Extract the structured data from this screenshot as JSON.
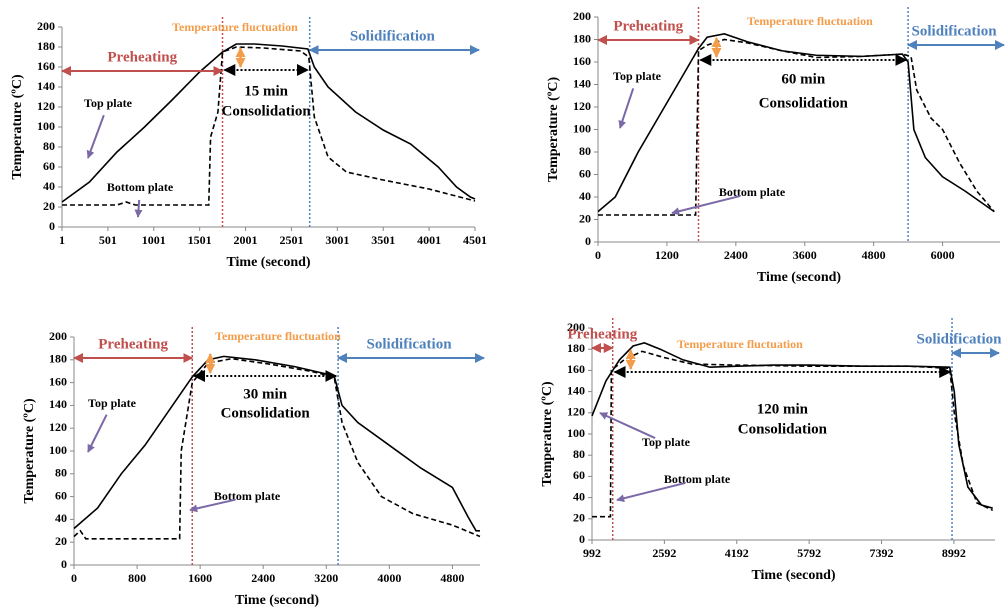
{
  "chart_data": [
    {
      "type": "line",
      "xlabel": "Time (second)",
      "ylabel": "Temperature (ºC)",
      "xlim": [
        1,
        4501
      ],
      "xticks": [
        1,
        501,
        1001,
        1501,
        2001,
        2501,
        3001,
        3501,
        4001,
        4501
      ],
      "ylim": [
        0,
        200
      ],
      "yticks": [
        0,
        20,
        40,
        60,
        80,
        100,
        120,
        140,
        160,
        180,
        200
      ],
      "vlines": [
        {
          "value": 1750,
          "color": "#c0504d"
        },
        {
          "value": 2700,
          "color": "#4f81bd"
        }
      ],
      "annotations": {
        "preheating": "Preheating",
        "fluctuation": "Temperature fluctuation",
        "solidification": "Solidification",
        "duration": "15 min",
        "consolidation": "Consolidation"
      },
      "series": [
        {
          "name": "Top plate",
          "color": "#000000",
          "line_style": "solid",
          "x": [
            1,
            300,
            600,
            900,
            1200,
            1500,
            1750,
            1900,
            2100,
            2400,
            2680,
            2750,
            2900,
            3200,
            3500,
            3800,
            4100,
            4300,
            4450,
            4501
          ],
          "values": [
            25,
            45,
            75,
            100,
            127,
            155,
            175,
            183,
            183,
            181,
            178,
            160,
            140,
            115,
            97,
            83,
            60,
            40,
            30,
            28
          ]
        },
        {
          "name": "Bottom plate",
          "color": "#000000",
          "line_style": "dashed",
          "x": [
            1,
            600,
            700,
            800,
            1600,
            1620,
            1700,
            1750,
            1900,
            2200,
            2600,
            2690,
            2750,
            2900,
            3100,
            3500,
            4000,
            4501
          ],
          "values": [
            22,
            22,
            25,
            22,
            22,
            90,
            115,
            175,
            180,
            179,
            176,
            170,
            110,
            70,
            55,
            47,
            38,
            26
          ]
        }
      ]
    },
    {
      "type": "line",
      "xlabel": "Time (second)",
      "ylabel": "Temperature (ºC)",
      "xlim": [
        0,
        7000
      ],
      "xticks": [
        0,
        1200,
        2400,
        3600,
        4800,
        6000
      ],
      "ylim": [
        0,
        200
      ],
      "yticks": [
        0,
        20,
        40,
        60,
        80,
        100,
        120,
        140,
        160,
        180,
        200
      ],
      "vlines": [
        {
          "value": 1750,
          "color": "#c0504d"
        },
        {
          "value": 5400,
          "color": "#4f81bd"
        }
      ],
      "annotations": {
        "preheating": "Preheating",
        "fluctuation": "Temperature fluctuation",
        "solidification": "Solidification",
        "duration": "60 min",
        "consolidation": "Consolidation"
      },
      "series": [
        {
          "name": "Top plate",
          "color": "#000000",
          "line_style": "solid",
          "x": [
            0,
            300,
            700,
            1100,
            1500,
            1750,
            1900,
            2200,
            2600,
            3200,
            3800,
            4600,
            5300,
            5400,
            5500,
            5700,
            6000,
            6400,
            6900
          ],
          "values": [
            27,
            40,
            80,
            115,
            150,
            172,
            182,
            185,
            178,
            170,
            166,
            165,
            167,
            160,
            100,
            75,
            58,
            45,
            27
          ]
        },
        {
          "name": "Bottom plate",
          "color": "#000000",
          "line_style": "dashed",
          "x": [
            0,
            1700,
            1750,
            1900,
            2200,
            2600,
            3200,
            3800,
            4600,
            5300,
            5450,
            5550,
            5800,
            6000,
            6300,
            6600,
            6900
          ],
          "values": [
            24,
            24,
            170,
            175,
            180,
            177,
            170,
            164,
            165,
            167,
            165,
            135,
            110,
            100,
            70,
            45,
            27
          ]
        }
      ]
    },
    {
      "type": "line",
      "xlabel": "Time (second)",
      "ylabel": "Temperature (ºC)",
      "xlim": [
        0,
        5150
      ],
      "xticks": [
        0,
        800,
        1600,
        2400,
        3200,
        4000,
        4800
      ],
      "ylim": [
        0,
        200
      ],
      "yticks": [
        0,
        20,
        40,
        60,
        80,
        100,
        120,
        140,
        160,
        180,
        200
      ],
      "vlines": [
        {
          "value": 1500,
          "color": "#c0504d"
        },
        {
          "value": 3350,
          "color": "#4f81bd"
        }
      ],
      "annotations": {
        "preheating": "Preheating",
        "fluctuation": "Temperature fluctuation",
        "solidification": "Solidification",
        "duration": "30 min",
        "consolidation": "Consolidation"
      },
      "series": [
        {
          "name": "Top plate",
          "color": "#000000",
          "line_style": "solid",
          "x": [
            0,
            300,
            600,
            900,
            1200,
            1500,
            1700,
            1900,
            2300,
            2800,
            3300,
            3400,
            3600,
            4000,
            4400,
            4800,
            5000,
            5100,
            5150
          ],
          "values": [
            32,
            50,
            80,
            105,
            135,
            165,
            180,
            183,
            180,
            174,
            166,
            140,
            125,
            105,
            85,
            68,
            42,
            30,
            30
          ]
        },
        {
          "name": "Bottom plate",
          "color": "#000000",
          "line_style": "dashed",
          "x": [
            0,
            80,
            150,
            1340,
            1360,
            1500,
            1700,
            2000,
            2500,
            3000,
            3300,
            3400,
            3600,
            3900,
            4300,
            4800,
            5150
          ],
          "values": [
            25,
            30,
            23,
            23,
            100,
            160,
            177,
            181,
            176,
            170,
            165,
            125,
            90,
            60,
            45,
            35,
            25
          ]
        }
      ]
    },
    {
      "type": "line",
      "xlabel": "Time (second)",
      "ylabel": "Temperature (ºC)",
      "xlim": [
        992,
        9900
      ],
      "xticks": [
        992,
        2592,
        4192,
        5792,
        7392,
        8992
      ],
      "ylim": [
        0,
        200
      ],
      "yticks": [
        0,
        20,
        40,
        60,
        80,
        100,
        120,
        140,
        160,
        180,
        200
      ],
      "vlines": [
        {
          "value": 1450,
          "color": "#c0504d"
        },
        {
          "value": 8950,
          "color": "#4f81bd"
        }
      ],
      "annotations": {
        "preheating": "Preheating",
        "fluctuation": "Temperature fluctuation",
        "solidification": "Solidification",
        "duration": "120 min",
        "consolidation": "Consolidation"
      },
      "series": [
        {
          "name": "Top plate",
          "color": "#000000",
          "line_style": "solid",
          "x": [
            992,
            1300,
            1600,
            1900,
            2150,
            2500,
            3000,
            3600,
            4192,
            5000,
            5792,
            7000,
            8000,
            8900,
            9000,
            9100,
            9300,
            9600,
            9850
          ],
          "values": [
            117,
            150,
            170,
            183,
            186,
            180,
            170,
            163,
            164,
            165,
            165,
            164,
            164,
            163,
            140,
            90,
            50,
            33,
            30
          ]
        },
        {
          "name": "Bottom plate",
          "color": "#000000",
          "line_style": "dashed",
          "x": [
            992,
            1400,
            1420,
            1700,
            2100,
            2600,
            3200,
            4192,
            5792,
            8000,
            8900,
            9000,
            9200,
            9500,
            9850
          ],
          "values": [
            22,
            22,
            160,
            170,
            178,
            172,
            166,
            165,
            164,
            164,
            162,
            120,
            70,
            35,
            28
          ]
        }
      ]
    }
  ]
}
